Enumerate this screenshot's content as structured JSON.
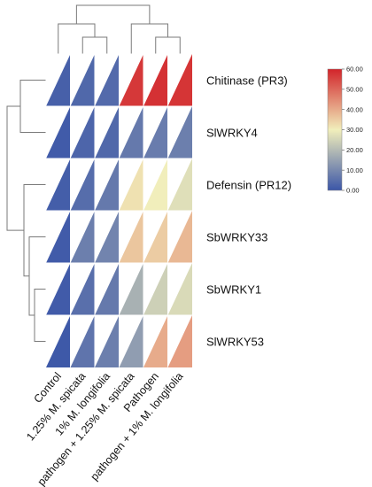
{
  "chart_data": {
    "type": "heatmap",
    "cell_shape": "triangle",
    "rows": [
      "Chitinase (PR3)",
      "SlWRKY4",
      "Defensin (PR12)",
      "SbWRKY33",
      "SbWRKY1",
      "SlWRKY53"
    ],
    "columns": [
      "Control",
      "1.25% M. spicata",
      "1% M. longifolia",
      "pathogen + 1.25% M. spicata",
      "Pathogen",
      "pathogen + 1% M. longifolia"
    ],
    "values": [
      [
        2.0,
        3.5,
        4.0,
        57.0,
        58.0,
        57.5
      ],
      [
        1.0,
        3.0,
        3.5,
        7.0,
        7.5,
        8.0
      ],
      [
        1.5,
        4.5,
        7.0,
        32.0,
        30.0,
        27.0
      ],
      [
        1.0,
        8.0,
        9.0,
        36.0,
        35.0,
        38.0
      ],
      [
        1.0,
        5.0,
        7.0,
        18.0,
        24.0,
        26.0
      ],
      [
        0.5,
        6.0,
        8.0,
        14.0,
        40.0,
        42.0
      ]
    ],
    "colorbar": {
      "min": 0,
      "max": 60,
      "ticks": [
        "0.00",
        "10.00",
        "20.00",
        "30.00",
        "40.00",
        "50.00",
        "60.00"
      ],
      "colors": [
        "#3b56a8",
        "#f1eebb",
        "#d2242a"
      ]
    },
    "row_dendrogram": true,
    "column_dendrogram": true
  }
}
